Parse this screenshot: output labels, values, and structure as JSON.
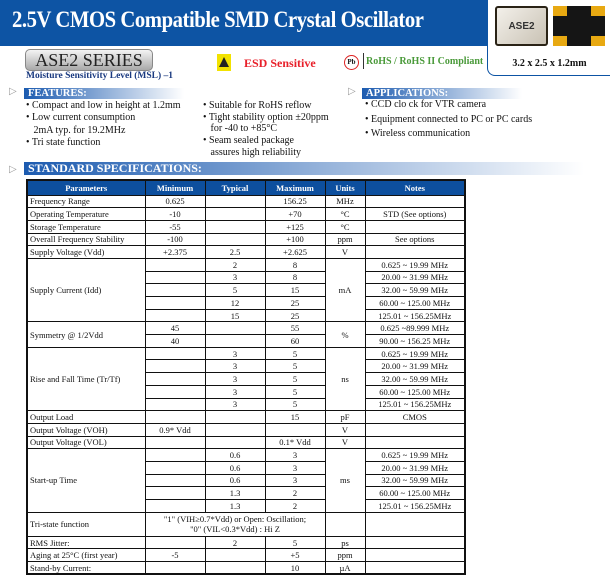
{
  "title": "2.5V CMOS Compatible SMD Crystal Oscillator",
  "product_image": {
    "chip_label": "ASE2",
    "dimensions": "3.2  x 2.5  x 1.2mm"
  },
  "series": "ASE2 SERIES",
  "esd": "ESD Sensitive",
  "pb_icon": "Pb",
  "rohs": "RoHS / RoHS II Compliant",
  "msl": "Moisture Sensitivity Level (MSL) –1",
  "features": {
    "heading": "FEATURES:",
    "col1": [
      "• Compact and low in height at 1.2mm",
      "• Low current consumption",
      "   2mA typ. for 19.2MHz",
      "• Tri state function"
    ],
    "col2": [
      "• Suitable for RoHS reflow",
      "• Tight stability option ±20ppm",
      "   for -40 to +85°C",
      "• Seam sealed package",
      "   assures high reliability"
    ]
  },
  "applications": {
    "heading": "APPLICATIONS:",
    "items": [
      "• CCD clo ck for VTR camera",
      "• Equipment connected to PC or PC cards",
      "• Wireless communication"
    ]
  },
  "specs": {
    "heading": "STANDARD SPECIFICATIONS:",
    "columns": [
      "Parameters",
      "Minimum",
      "Typical",
      "Maximum",
      "Units",
      "Notes"
    ],
    "groups": [
      {
        "param": "Frequency Range",
        "unit": "MHz",
        "rows": [
          [
            "0.625",
            "",
            "156.25",
            ""
          ]
        ]
      },
      {
        "param": "Operating Temperature",
        "unit": "°C",
        "rows": [
          [
            "-10",
            "",
            "+70",
            "STD (See options)"
          ]
        ]
      },
      {
        "param": "Storage Temperature",
        "unit": "°C",
        "rows": [
          [
            "-55",
            "",
            "+125",
            ""
          ]
        ]
      },
      {
        "param": "Overall Frequency Stability",
        "unit": "ppm",
        "rows": [
          [
            "-100",
            "",
            "+100",
            "See options"
          ]
        ]
      },
      {
        "param": "Supply Voltage (Vdd)",
        "unit": "V",
        "rows": [
          [
            "+2.375",
            "2.5",
            "+2.625",
            ""
          ]
        ]
      },
      {
        "param": "Supply Current (Idd)",
        "unit": "mA",
        "rows": [
          [
            "",
            "2",
            "8",
            "0.625 ~ 19.99 MHz"
          ],
          [
            "",
            "3",
            "8",
            "20.00 ~ 31.99 MHz"
          ],
          [
            "",
            "5",
            "15",
            "32.00 ~ 59.99 MHz"
          ],
          [
            "",
            "12",
            "25",
            "60.00 ~ 125.00 MHz"
          ],
          [
            "",
            "15",
            "25",
            "125.01 ~ 156.25MHz"
          ]
        ]
      },
      {
        "param": "Symmetry  @ 1/2Vdd",
        "unit": "%",
        "rows": [
          [
            "45",
            "",
            "55",
            "0.625 ~89.999 MHz"
          ],
          [
            "40",
            "",
            "60",
            "90.00 ~ 156.25 MHz"
          ]
        ]
      },
      {
        "param": "Rise and Fall Time (Tr/Tf)",
        "unit": "ns",
        "rows": [
          [
            "",
            "3",
            "5",
            "0.625 ~ 19.99 MHz"
          ],
          [
            "",
            "3",
            "5",
            "20.00 ~ 31.99 MHz"
          ],
          [
            "",
            "3",
            "5",
            "32.00 ~ 59.99 MHz"
          ],
          [
            "",
            "3",
            "5",
            "60.00 ~ 125.00 MHz"
          ],
          [
            "",
            "3",
            "5",
            "125.01 ~ 156.25MHz"
          ]
        ]
      },
      {
        "param": "Output Load",
        "unit": "pF",
        "rows": [
          [
            "",
            "",
            "15",
            "CMOS"
          ]
        ]
      },
      {
        "param": "Output Voltage (VOH)",
        "unit": "V",
        "rows": [
          [
            "0.9* Vdd",
            "",
            "",
            ""
          ]
        ]
      },
      {
        "param": "Output Voltage (VOL)",
        "unit": "V",
        "rows": [
          [
            "",
            "",
            "0.1* Vdd",
            ""
          ]
        ]
      },
      {
        "param": "Start-up Time",
        "unit": "ms",
        "rows": [
          [
            "",
            "0.6",
            "3",
            "0.625 ~ 19.99 MHz"
          ],
          [
            "",
            "0.6",
            "3",
            "20.00 ~ 31.99 MHz"
          ],
          [
            "",
            "0.6",
            "3",
            "32.00 ~ 59.99 MHz"
          ],
          [
            "",
            "1.3",
            "2",
            "60.00 ~ 125.00 MHz"
          ],
          [
            "",
            "1.3",
            "2",
            "125.01 ~ 156.25MHz"
          ]
        ]
      },
      {
        "param": "Tri-state function",
        "unit": "",
        "span": "\"1\" (VIH≥0.7*Vdd) or Open: Oscillation;\n\"0\" (VIL<0.3*Vdd) : Hi Z",
        "rows": [
          [
            "",
            "",
            "",
            ""
          ]
        ]
      },
      {
        "param": "RMS Jitter:",
        "unit": "ps",
        "rows": [
          [
            "",
            "2",
            "5",
            ""
          ]
        ]
      },
      {
        "param": "Aging at 25°C (first year)",
        "unit": "ppm",
        "rows": [
          [
            "-5",
            "",
            "+5",
            ""
          ]
        ]
      },
      {
        "param": "Stand-by Current:",
        "unit": "µA",
        "rows": [
          [
            "",
            "",
            "10",
            ""
          ]
        ]
      }
    ]
  }
}
